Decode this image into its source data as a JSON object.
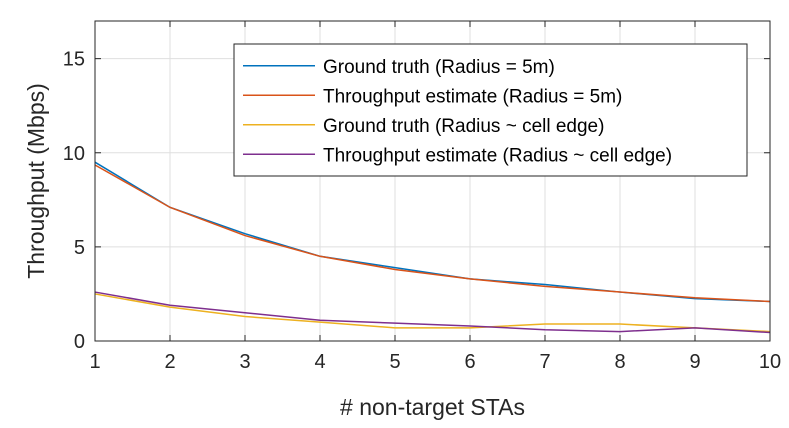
{
  "chart_data": {
    "type": "line",
    "xlabel": "# non-target STAs",
    "ylabel": "Throughput (Mbps)",
    "xlim": [
      1,
      10
    ],
    "ylim": [
      0,
      17
    ],
    "xticks": [
      "1",
      "2",
      "3",
      "4",
      "5",
      "6",
      "7",
      "8",
      "9",
      "10"
    ],
    "yticks": [
      "0",
      "5",
      "10",
      "15"
    ],
    "grid": true,
    "legend_position": "top-right",
    "x": [
      1,
      2,
      3,
      4,
      5,
      6,
      7,
      8,
      9,
      10
    ],
    "series": [
      {
        "name": "Ground truth (Radius = 5m)",
        "color": "#0072BD",
        "values": [
          9.5,
          7.1,
          5.7,
          4.5,
          3.9,
          3.3,
          3.0,
          2.6,
          2.25,
          2.1
        ]
      },
      {
        "name": "Throughput estimate (Radius = 5m)",
        "color": "#D95319",
        "values": [
          9.35,
          7.1,
          5.6,
          4.5,
          3.8,
          3.3,
          2.9,
          2.6,
          2.3,
          2.1
        ]
      },
      {
        "name": "Ground truth (Radius ~ cell edge)",
        "color": "#EDB120",
        "values": [
          2.5,
          1.8,
          1.3,
          1.0,
          0.7,
          0.7,
          0.9,
          0.9,
          0.7,
          0.5
        ]
      },
      {
        "name": "Throughput estimate (Radius ~ cell edge)",
        "color": "#7E2F8E",
        "values": [
          2.6,
          1.9,
          1.5,
          1.1,
          0.95,
          0.8,
          0.6,
          0.5,
          0.7,
          0.45
        ]
      }
    ]
  }
}
